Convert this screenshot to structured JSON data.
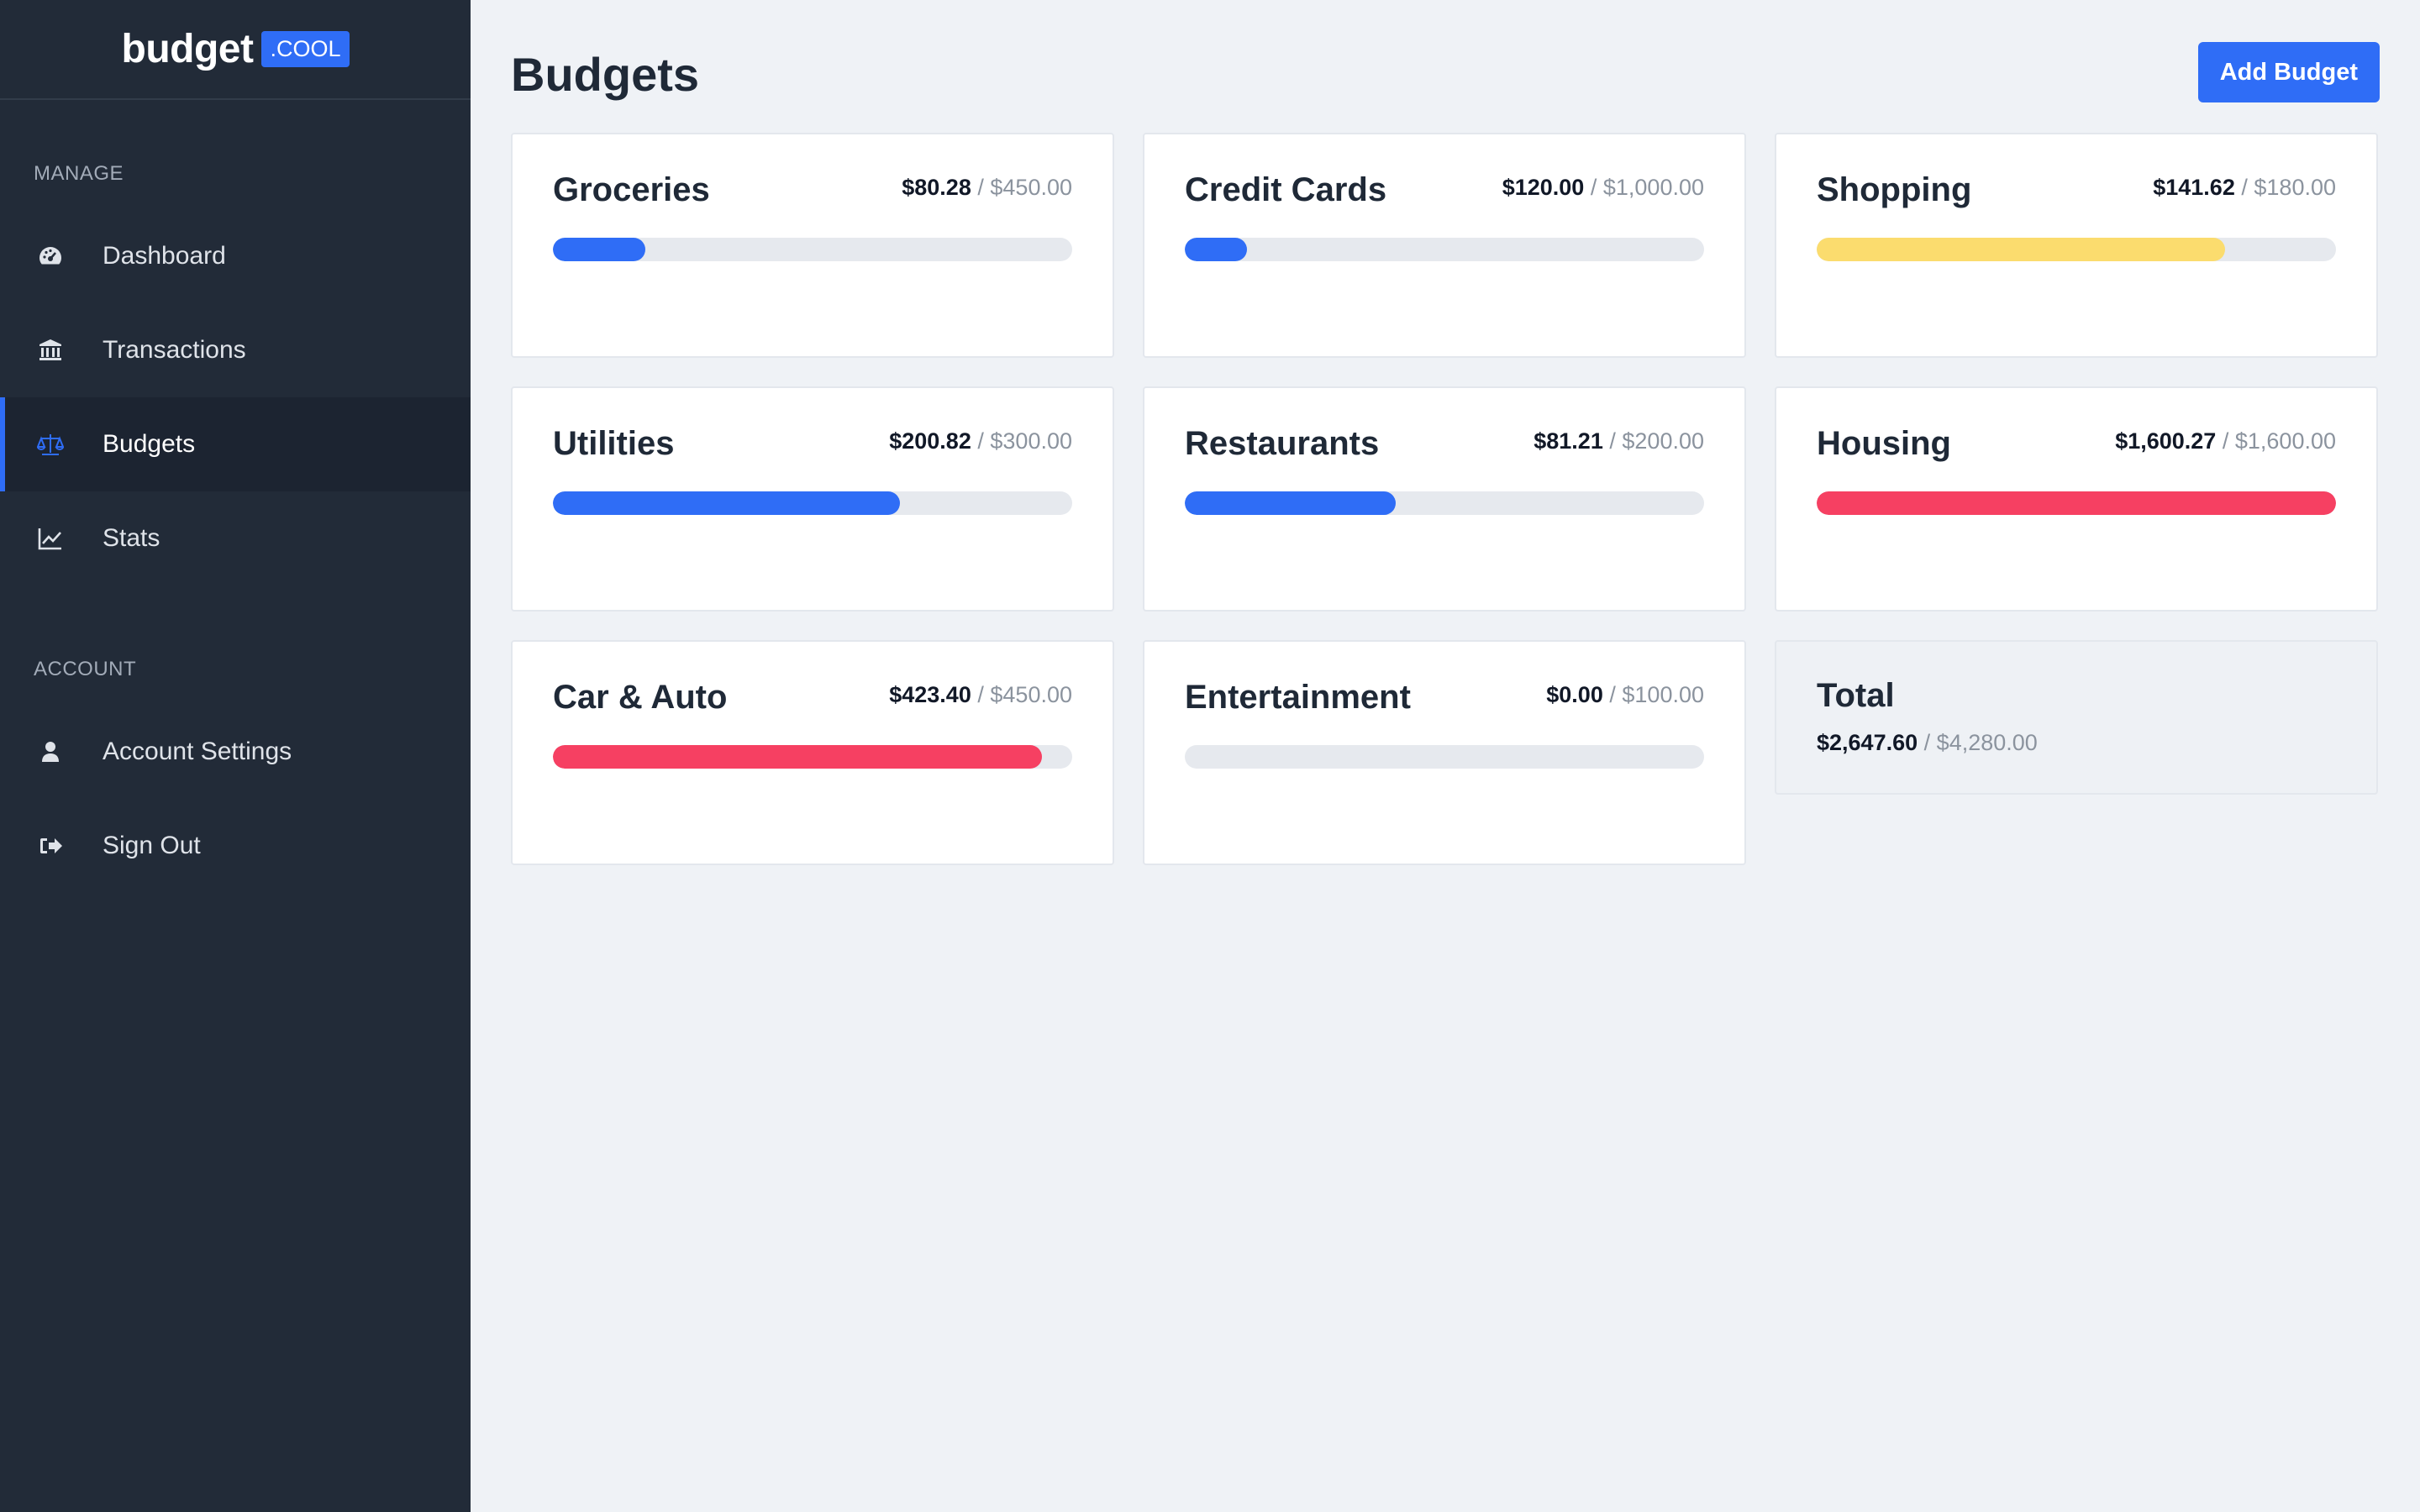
{
  "brand": {
    "word": "budget",
    "tag": ".COOL"
  },
  "sidebar": {
    "manage_label": "MANAGE",
    "account_label": "ACCOUNT",
    "manage_items": [
      {
        "label": "Dashboard",
        "icon": "dashboard-gauge-icon"
      },
      {
        "label": "Transactions",
        "icon": "bank-icon"
      },
      {
        "label": "Budgets",
        "icon": "balance-scale-icon",
        "active": true
      },
      {
        "label": "Stats",
        "icon": "line-chart-icon"
      }
    ],
    "account_items": [
      {
        "label": "Account Settings",
        "icon": "user-icon"
      },
      {
        "label": "Sign Out",
        "icon": "sign-out-icon"
      }
    ]
  },
  "header": {
    "title": "Budgets",
    "add_button": "Add Budget"
  },
  "budgets": [
    {
      "name": "Groceries",
      "spent": "$80.28",
      "limit": "$450.00",
      "progress": 0.178,
      "color": "#2f6df6"
    },
    {
      "name": "Credit Cards",
      "spent": "$120.00",
      "limit": "$1,000.00",
      "progress": 0.12,
      "color": "#2f6df6"
    },
    {
      "name": "Shopping",
      "spent": "$141.62",
      "limit": "$180.00",
      "progress": 0.787,
      "color": "#fbdc6e"
    },
    {
      "name": "Utilities",
      "spent": "$200.82",
      "limit": "$300.00",
      "progress": 0.669,
      "color": "#2f6df6"
    },
    {
      "name": "Restaurants",
      "spent": "$81.21",
      "limit": "$200.00",
      "progress": 0.406,
      "color": "#2f6df6"
    },
    {
      "name": "Housing",
      "spent": "$1,600.27",
      "limit": "$1,600.00",
      "progress": 1.0,
      "color": "#f64062"
    },
    {
      "name": "Car & Auto",
      "spent": "$423.40",
      "limit": "$450.00",
      "progress": 0.941,
      "color": "#f64062"
    },
    {
      "name": "Entertainment",
      "spent": "$0.00",
      "limit": "$100.00",
      "progress": 0.0,
      "color": "#2f6df6"
    }
  ],
  "total": {
    "title": "Total",
    "spent": "$2,647.60",
    "limit": "$4,280.00"
  },
  "separator": "/"
}
